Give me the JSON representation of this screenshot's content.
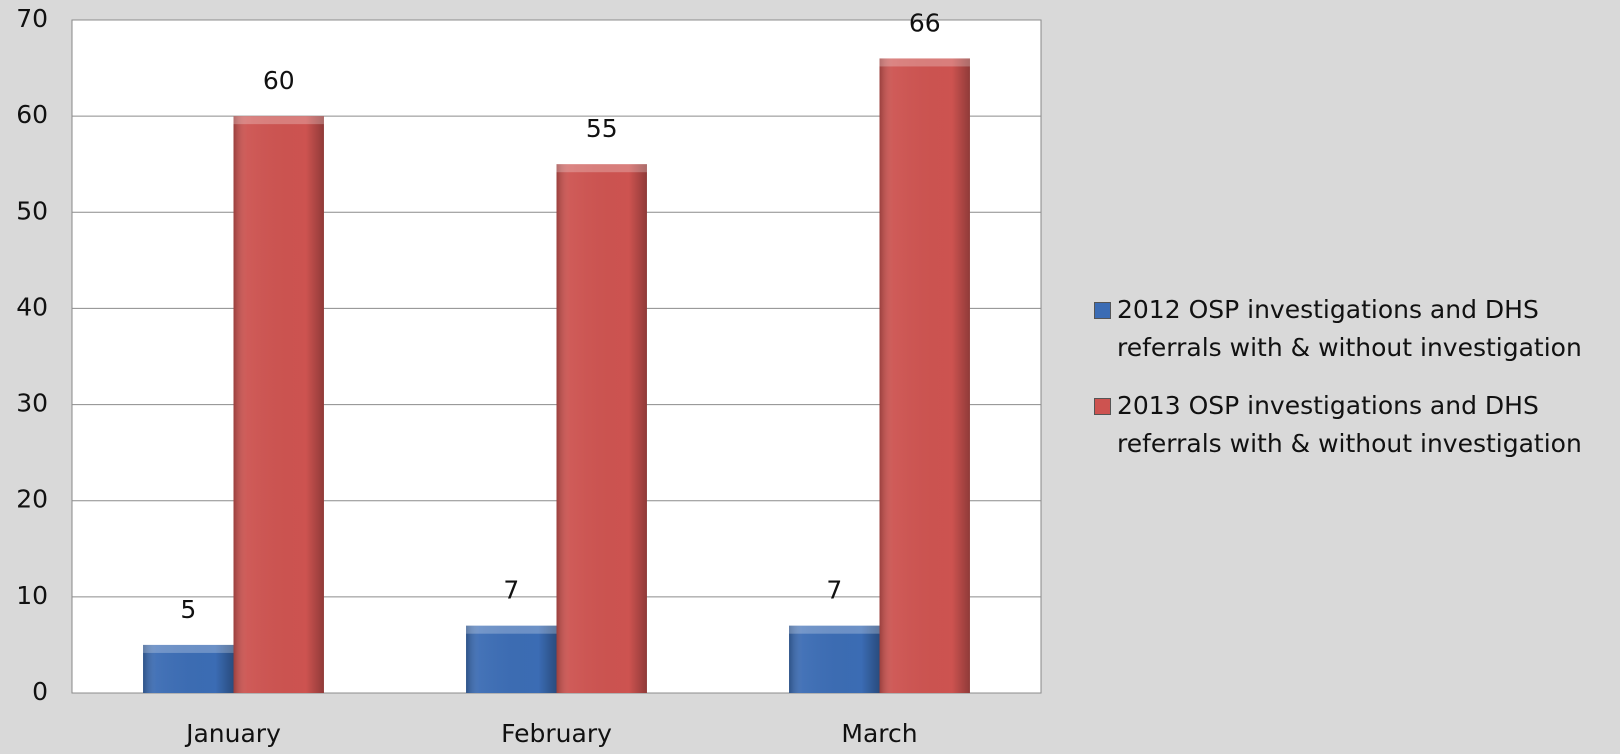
{
  "chart_data": {
    "type": "bar",
    "categories": [
      "January",
      "February",
      "March"
    ],
    "series": [
      {
        "name": "2012 OSP investigations and DHS referrals with & without investigation",
        "color": "#3b6cb4",
        "values": [
          5,
          7,
          7
        ]
      },
      {
        "name": "2013 OSP investigations and DHS referrals with & without investigation",
        "color": "#cd5350",
        "values": [
          60,
          55,
          66
        ]
      }
    ],
    "ylim": [
      0,
      70
    ],
    "yticks": [
      0,
      10,
      20,
      30,
      40,
      50,
      60,
      70
    ],
    "grid": true,
    "legend": "right"
  }
}
